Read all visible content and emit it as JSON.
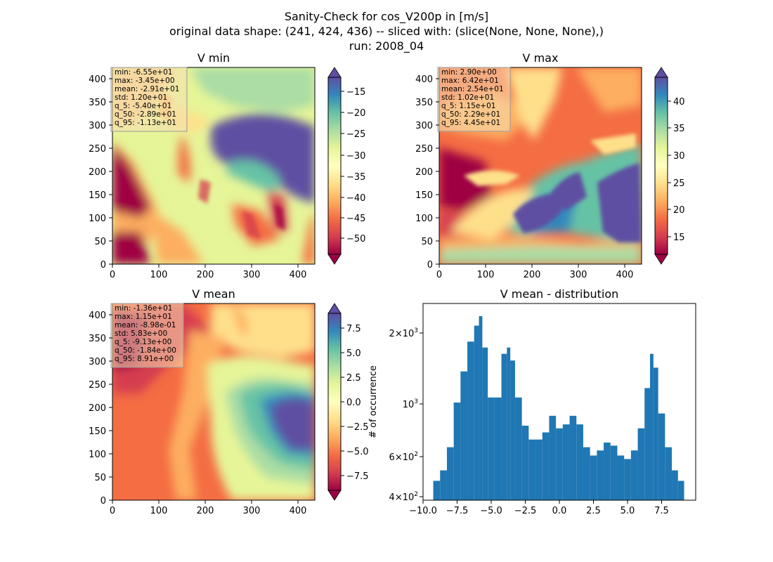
{
  "figure": {
    "title_lines": [
      "Sanity-Check for cos_V200p in [m/s]",
      "original data shape: (241, 424, 436) -- sliced with: (slice(None, None, None),)",
      "run: 2008_04"
    ]
  },
  "colors": {
    "spectral_stops": [
      "#9e0142",
      "#d53e4f",
      "#f46d43",
      "#fdae61",
      "#fee08b",
      "#ffffbf",
      "#e6f598",
      "#abdda4",
      "#66c2a5",
      "#3288bd",
      "#5e4fa2"
    ],
    "histogram_bar": "#1f77b4",
    "stats_box_bg": "#f5deb3"
  },
  "icons": [
    "colorbar-extend-max-arrow",
    "colorbar-extend-min-arrow"
  ],
  "chart_data": [
    {
      "type": "heatmap",
      "title": "V min",
      "colormap": "Spectral",
      "xlim": [
        0,
        436
      ],
      "ylim": [
        0,
        424
      ],
      "x_ticks": [
        "0",
        "100",
        "200",
        "300",
        "400"
      ],
      "y_ticks": [
        "0",
        "50",
        "100",
        "150",
        "200",
        "250",
        "300",
        "350",
        "400"
      ],
      "colorbar": {
        "range": [
          -55,
          -11.3
        ],
        "ticks": [
          "−50",
          "−45",
          "−40",
          "−35",
          "−30",
          "−25",
          "−20",
          "−15"
        ]
      },
      "stats": [
        "min: -6.55e+01",
        "max: -3.45e+00",
        "mean: -2.91e+01",
        "std: 1.20e+01",
        "q_5: -5.40e+01",
        "q_50: -2.89e+01",
        "q_95: -1.13e+01"
      ]
    },
    {
      "type": "heatmap",
      "title": "V max",
      "colormap": "Spectral",
      "xlim": [
        0,
        436
      ],
      "ylim": [
        0,
        424
      ],
      "x_ticks": [
        "0",
        "100",
        "200",
        "300",
        "400"
      ],
      "y_ticks": [
        "0",
        "50",
        "100",
        "150",
        "200",
        "250",
        "300",
        "350",
        "400"
      ],
      "colorbar": {
        "range": [
          11.5,
          44.5
        ],
        "ticks": [
          "15",
          "20",
          "25",
          "30",
          "35",
          "40"
        ]
      },
      "stats": [
        "min: 2.90e+00",
        "max: 6.42e+01",
        "mean: 2.54e+01",
        "std: 1.02e+01",
        "q_5: 1.15e+01",
        "q_50: 2.29e+01",
        "q_95: 4.45e+01"
      ]
    },
    {
      "type": "heatmap",
      "title": "V mean",
      "colormap": "Spectral",
      "xlim": [
        0,
        436
      ],
      "ylim": [
        0,
        424
      ],
      "x_ticks": [
        "0",
        "100",
        "200",
        "300",
        "400"
      ],
      "y_ticks": [
        "0",
        "50",
        "100",
        "150",
        "200",
        "250",
        "300",
        "350",
        "400"
      ],
      "colorbar": {
        "range": [
          -9.13,
          8.91
        ],
        "ticks": [
          "−7.5",
          "−5.0",
          "−2.5",
          "0.0",
          "2.5",
          "5.0",
          "7.5"
        ]
      },
      "stats": [
        "min: -1.36e+01",
        "max: 1.15e+01",
        "mean: -8.98e-01",
        "std: 5.83e+00",
        "q_5: -9.13e+00",
        "q_50: -1.84e+00",
        "q_95: 8.91e+00"
      ]
    },
    {
      "type": "bar",
      "title": "V mean - distribution",
      "ylabel": "# of occurrence",
      "yscale": "log",
      "xlim": [
        -10,
        10
      ],
      "ylim": [
        390,
        2600
      ],
      "x_ticks": [
        "−10.0",
        "−7.5",
        "−5.0",
        "−2.5",
        "0.0",
        "2.5",
        "5.0",
        "7.5"
      ],
      "y_ticks": [
        {
          "base": "4×10",
          "exp": "2"
        },
        {
          "base": "6×10",
          "exp": "2"
        },
        {
          "base": "10",
          "exp": "3"
        },
        {
          "base": "2×10",
          "exp": "3"
        }
      ],
      "bin_centers": [
        -9.0,
        -8.5,
        -8.0,
        -7.5,
        -7.0,
        -6.5,
        -6.0,
        -5.8,
        -5.5,
        -5.0,
        -4.5,
        -4.0,
        -3.7,
        -3.5,
        -3.0,
        -2.5,
        -2.0,
        -1.5,
        -1.0,
        -0.5,
        0.0,
        0.5,
        1.0,
        1.5,
        2.0,
        2.5,
        3.0,
        3.5,
        4.0,
        4.5,
        5.0,
        5.5,
        6.0,
        6.5,
        6.8,
        7.0,
        7.5,
        8.0,
        8.5,
        8.9
      ],
      "counts": [
        470,
        520,
        650,
        1000,
        1350,
        1800,
        2100,
        2300,
        1700,
        1050,
        1050,
        1600,
        1700,
        1500,
        1050,
        800,
        700,
        700,
        750,
        880,
        780,
        810,
        880,
        810,
        650,
        600,
        630,
        680,
        660,
        600,
        580,
        630,
        780,
        1150,
        1600,
        1400,
        900,
        650,
        520,
        470
      ]
    }
  ]
}
